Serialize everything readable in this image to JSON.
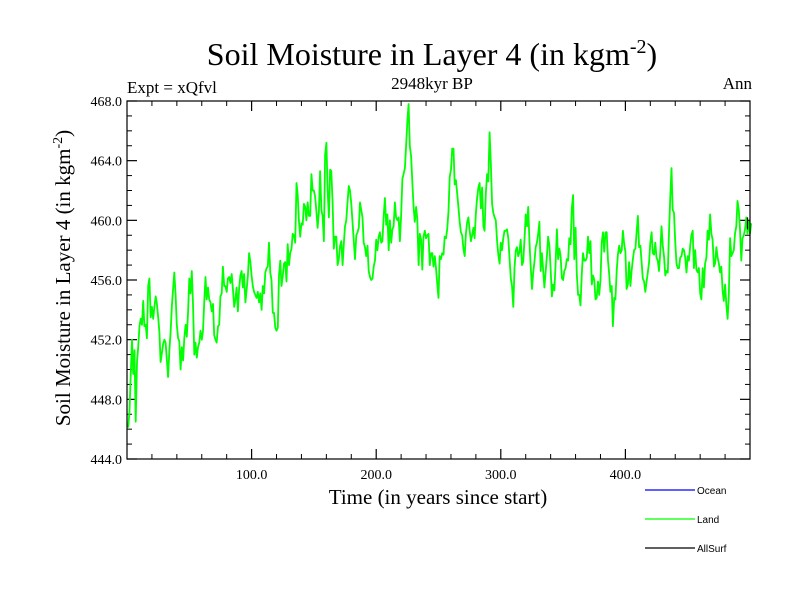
{
  "chart_data": {
    "type": "line",
    "title": "Soil Moisture in Layer 4 (in kgm",
    "title_sup": "-2",
    "title_end": ")",
    "subtitle": "2948kyr BP",
    "left_label": "Expt = xQfvl",
    "right_label": "Ann",
    "xlabel": "Time (in years since start)",
    "ylabel": "Soil Moisture in Layer 4 (in kgm",
    "ylabel_sup": "-2",
    "ylabel_end": ")",
    "xlim": [
      0,
      500
    ],
    "ylim": [
      444.0,
      468.0
    ],
    "x_ticks": [
      100,
      200,
      300,
      400
    ],
    "x_tick_labels": [
      "100.0",
      "200.0",
      "300.0",
      "400.0"
    ],
    "y_ticks": [
      444,
      448,
      452,
      456,
      460,
      464,
      468
    ],
    "y_tick_labels": [
      "444.0",
      "448.0",
      "452.0",
      "456.0",
      "460.0",
      "464.0",
      "468.0"
    ],
    "x_minor_step": 20,
    "y_minor_step": 1,
    "legend": {
      "placement": "bottom-right",
      "entries": [
        {
          "name": "Ocean",
          "color": "#0000ff"
        },
        {
          "name": "Land",
          "color": "#00ff00"
        },
        {
          "name": "AllSurf",
          "color": "#000000"
        }
      ]
    },
    "series": [
      {
        "name": "Land",
        "color": "#00ff00",
        "x_start": 1,
        "x_step": 1,
        "values": [
          446.1,
          447.2,
          449.6,
          452.0,
          449.7,
          451.3,
          446.5,
          450.5,
          451.5,
          452.9,
          453.4,
          453.0,
          454.6,
          452.9,
          453.0,
          452.1,
          455.6,
          456.1,
          453.5,
          454.2,
          453.4,
          454.2,
          454.9,
          454.4,
          453.5,
          452.5,
          450.5,
          451.1,
          451.7,
          452.0,
          451.8,
          450.6,
          449.5,
          451.3,
          452.5,
          454.3,
          455.4,
          456.5,
          455.0,
          453.0,
          452.1,
          451.9,
          450.0,
          451.5,
          450.6,
          452.1,
          453.0,
          452.2,
          453.9,
          456.1,
          455.1,
          456.6,
          454.4,
          451.0,
          451.8,
          450.8,
          451.5,
          451.8,
          452.6,
          452.0,
          452.6,
          454.6,
          456.2,
          454.7,
          455.5,
          454.7,
          454.5,
          453.9,
          454.4,
          452.3,
          452.0,
          451.8,
          452.9,
          453.0,
          454.9,
          455.1,
          456.9,
          455.6,
          455.6,
          455.2,
          456.1,
          456.2,
          455.8,
          456.4,
          455.4,
          454.2,
          454.7,
          455.5,
          453.9,
          455.4,
          456.3,
          456.6,
          455.5,
          456.4,
          454.5,
          455.3,
          456.3,
          457.8,
          457.2,
          456.3,
          455.6,
          455.2,
          455.0,
          454.8,
          455.2,
          454.5,
          455.1,
          454.0,
          455.6,
          455.1,
          456.5,
          456.8,
          456.9,
          458.5,
          456.5,
          456.0,
          453.8,
          453.8,
          452.8,
          452.6,
          452.8,
          456.3,
          457.3,
          455.6,
          456.3,
          457.1,
          457.2,
          455.9,
          458.4,
          457.0,
          457.8,
          458.1,
          459.1,
          459.0,
          458.5,
          462.5,
          461.7,
          460.0,
          458.9,
          459.8,
          459.7,
          461.1,
          460.9,
          460.0,
          461.2,
          460.3,
          460.3,
          463.1,
          462.0,
          462.0,
          461.6,
          460.6,
          459.5,
          460.6,
          463.3,
          460.7,
          460.3,
          458.6,
          464.4,
          465.2,
          462.1,
          460.2,
          463.4,
          463.3,
          461.2,
          458.1,
          458.9,
          458.9,
          457.0,
          457.4,
          458.3,
          458.6,
          457.0,
          458.4,
          459.6,
          460.0,
          461.2,
          462.3,
          462.0,
          461.1,
          459.9,
          458.6,
          457.4,
          459.0,
          459.2,
          459.5,
          461.2,
          460.7,
          460.2,
          458.5,
          458.2,
          457.6,
          458.3,
          456.6,
          456.2,
          456.0,
          456.1,
          456.9,
          457.3,
          458.7,
          458.0,
          458.9,
          459.2,
          458.5,
          458.6,
          460.3,
          461.5,
          459.7,
          460.4,
          458.0,
          460.0,
          458.5,
          459.4,
          459.6,
          461.2,
          460.2,
          460.0,
          460.2,
          458.6,
          460.3,
          462.8,
          463.1,
          463.5,
          465.0,
          466.7,
          467.8,
          465.0,
          464.3,
          462.6,
          460.9,
          459.9,
          460.9,
          460.1,
          457.0,
          459.1,
          458.7,
          456.7,
          458.9,
          459.3,
          458.8,
          459.0,
          459.1,
          457.0,
          457.8,
          457.8,
          456.9,
          457.6,
          456.8,
          455.7,
          454.8,
          457.6,
          457.4,
          457.8,
          457.7,
          458.9,
          458.8,
          459.4,
          460.6,
          462.9,
          463.4,
          464.8,
          464.8,
          462.4,
          462.7,
          461.8,
          460.9,
          459.9,
          459.2,
          459.0,
          458.1,
          457.6,
          459.1,
          459.9,
          460.2,
          459.3,
          458.6,
          459.0,
          459.5,
          458.8,
          460.5,
          461.5,
          462.2,
          462.5,
          460.8,
          462.2,
          459.6,
          459.3,
          461.8,
          463.1,
          462.6,
          465.9,
          463.9,
          461.1,
          460.5,
          460.2,
          460.0,
          458.6,
          457.7,
          457.1,
          458.5,
          458.0,
          458.8,
          459.3,
          459.3,
          459.4,
          458.8,
          457.5,
          456.1,
          455.6,
          454.2,
          456.8,
          458.0,
          458.2,
          457.6,
          457.9,
          458.7,
          457.0,
          457.2,
          458.7,
          460.4,
          459.6,
          460.9,
          458.5,
          456.9,
          455.4,
          456.5,
          457.2,
          458.2,
          458.5,
          459.1,
          459.9,
          456.6,
          457.8,
          456.6,
          455.5,
          456.6,
          457.6,
          458.9,
          458.3,
          456.8,
          454.9,
          455.7,
          455.3,
          457.1,
          459.4,
          457.4,
          458.1,
          457.6,
          456.1,
          456.0,
          456.6,
          456.8,
          457.4,
          457.3,
          458.8,
          458.4,
          460.8,
          461.7,
          457.4,
          459.5,
          456.4,
          455.0,
          455.0,
          454.3,
          456.4,
          457.8,
          457.3,
          457.3,
          457.5,
          458.9,
          457.8,
          458.6,
          455.7,
          456.3,
          456.0,
          454.7,
          454.8,
          455.9,
          455.0,
          456.0,
          458.5,
          459.2,
          457.9,
          459.2,
          459.2,
          457.3,
          456.4,
          455.2,
          455.6,
          452.9,
          454.8,
          454.7,
          456.6,
          457.7,
          458.3,
          457.8,
          458.0,
          459.3,
          458.4,
          457.9,
          455.4,
          455.7,
          457.2,
          455.6,
          456.6,
          457.4,
          458.0,
          458.1,
          459.2,
          460.3,
          458.2,
          458.3,
          457.2,
          456.1,
          455.9,
          455.2,
          455.9,
          456.5,
          457.2,
          458.5,
          459.2,
          457.8,
          457.7,
          458.5,
          457.5,
          457.3,
          456.6,
          457.9,
          459.6,
          458.3,
          457.6,
          456.3,
          456.6,
          456.5,
          459.2,
          461.6,
          463.5,
          460.7,
          460.5,
          458.6,
          457.1,
          456.8,
          456.8,
          457.5,
          457.6,
          458.1,
          458.0,
          457.5,
          456.5,
          457.6,
          457.3,
          458.3,
          459.0,
          459.3,
          456.8,
          458.0,
          456.7,
          456.5,
          456.8,
          455.1,
          454.7,
          456.8,
          455.5,
          457.1,
          457.5,
          459.3,
          458.7,
          460.4,
          459.1,
          458.7,
          456.9,
          457.1,
          458.2,
          457.5,
          457.1,
          456.5,
          456.9,
          455.3,
          454.6,
          455.7,
          454.4,
          453.4,
          454.9,
          458.8,
          457.6,
          457.8,
          458.0,
          459.1,
          459.6,
          461.3,
          460.7,
          459.4,
          457.3,
          458.8,
          459.0,
          459.4,
          460.2,
          459.1,
          459.9,
          459.1,
          459.8
        ]
      },
      {
        "name": "Right edge marker",
        "color": "#000000",
        "x": [
          498,
          498
        ],
        "values": [
          459.4,
          460.2
        ]
      }
    ]
  }
}
